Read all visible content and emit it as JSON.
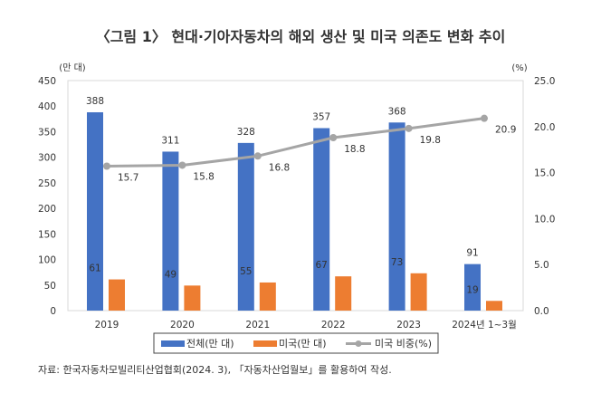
{
  "chart_data": {
    "type": "bar",
    "title": "〈그림 1〉 현대·기아자동차의 해외 생산 및 미국 의존도 변화 추이",
    "y_unit_left": "(만 대)",
    "y_unit_right": "(%)",
    "categories": [
      "2019",
      "2020",
      "2021",
      "2022",
      "2023",
      "2024년 1~3월"
    ],
    "series": [
      {
        "name": "전체(만 대)",
        "type": "bar",
        "axis": "left",
        "color": "#4472C4",
        "values": [
          388,
          311,
          328,
          357,
          368,
          91
        ]
      },
      {
        "name": "미국(만 대)",
        "type": "bar",
        "axis": "left",
        "color": "#ED7D31",
        "values": [
          61,
          49,
          55,
          67,
          73,
          19
        ]
      },
      {
        "name": "미국 비중(%)",
        "type": "line",
        "axis": "right",
        "color": "#A5A5A5",
        "values": [
          15.7,
          15.8,
          16.8,
          18.8,
          19.8,
          20.9
        ]
      }
    ],
    "ylim_left": [
      0,
      450
    ],
    "yticks_left": [
      "0",
      "50",
      "100",
      "150",
      "200",
      "250",
      "300",
      "350",
      "400",
      "450"
    ],
    "ylim_right": [
      0,
      25
    ],
    "yticks_right": [
      "0.0",
      "5.0",
      "10.0",
      "15.0",
      "20.0",
      "25.0"
    ],
    "grid": false,
    "legend_placement": "bottom",
    "source": "자료: 한국자동차모빌리티산업협회(2024. 3), 「자동차산업월보」를 활용하여 작성."
  }
}
